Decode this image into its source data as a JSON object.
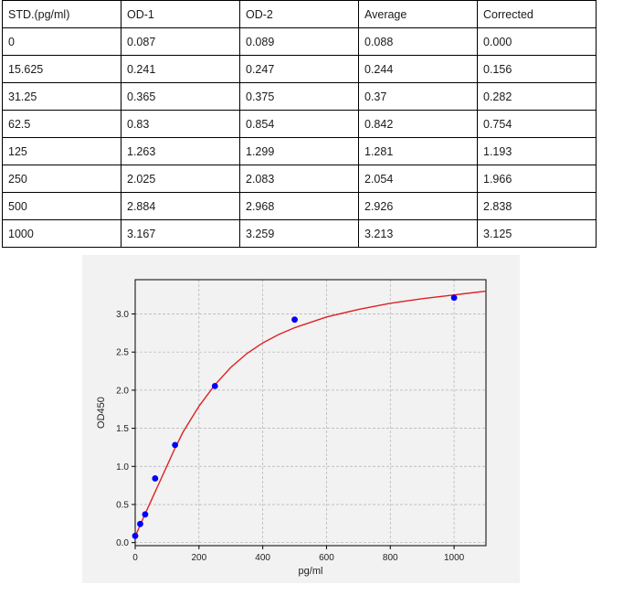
{
  "table": {
    "headers": [
      "STD.(pg/ml)",
      "OD-1",
      "OD-2",
      "Average",
      "Corrected"
    ],
    "rows": [
      [
        "0",
        "0.087",
        "0.089",
        "0.088",
        "0.000"
      ],
      [
        "15.625",
        "0.241",
        "0.247",
        "0.244",
        "0.156"
      ],
      [
        "31.25",
        "0.365",
        "0.375",
        "0.37",
        "0.282"
      ],
      [
        "62.5",
        "0.83",
        "0.854",
        "0.842",
        "0.754"
      ],
      [
        "125",
        "1.263",
        "1.299",
        "1.281",
        "1.193"
      ],
      [
        "250",
        "2.025",
        "2.083",
        "2.054",
        "1.966"
      ],
      [
        "500",
        "2.884",
        "2.968",
        "2.926",
        "2.838"
      ],
      [
        "1000",
        "3.167",
        "3.259",
        "3.213",
        "3.125"
      ]
    ]
  },
  "chart_data": {
    "type": "scatter",
    "xlabel": "pg/ml",
    "ylabel": "OD450",
    "xlim": [
      0,
      1100
    ],
    "ylim": [
      -0.04,
      3.45
    ],
    "xticks": [
      0,
      200,
      400,
      600,
      800,
      1000
    ],
    "yticks": [
      0.0,
      0.5,
      1.0,
      1.5,
      2.0,
      2.5,
      3.0
    ],
    "grid": true,
    "points": {
      "x": [
        0,
        15.625,
        31.25,
        62.5,
        125,
        250,
        500,
        1000
      ],
      "y": [
        0.088,
        0.244,
        0.37,
        0.842,
        1.281,
        2.054,
        2.926,
        3.213
      ]
    },
    "fit_curve": {
      "x": [
        0,
        25,
        50,
        75,
        100,
        125,
        150,
        200,
        250,
        300,
        350,
        400,
        450,
        500,
        600,
        700,
        800,
        900,
        1000,
        1100
      ],
      "y": [
        0.08,
        0.32,
        0.55,
        0.78,
        1.01,
        1.24,
        1.45,
        1.79,
        2.07,
        2.3,
        2.48,
        2.62,
        2.73,
        2.82,
        2.96,
        3.06,
        3.14,
        3.2,
        3.25,
        3.3
      ]
    },
    "colors": {
      "points": "#0000ff",
      "curve": "#dd2222",
      "grid": "#b0b0b0"
    }
  }
}
